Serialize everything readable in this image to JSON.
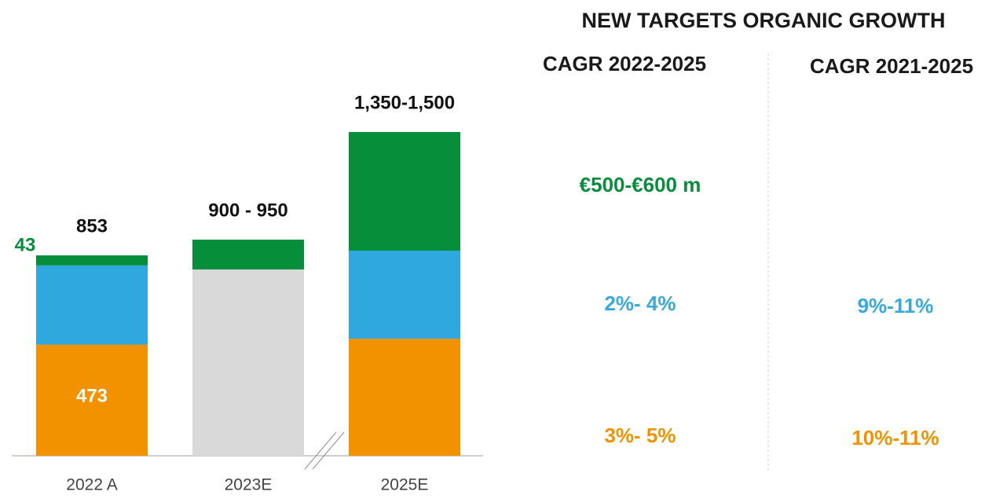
{
  "chart_data": {
    "type": "stacked_bar",
    "categories": [
      "2022 A",
      "2023E",
      "2025E"
    ],
    "series": [
      {
        "color": "#f29200",
        "values": [
          473,
          null,
          498
        ],
        "value_labels": [
          "473",
          null,
          null
        ]
      },
      {
        "color": "#d9d9d9",
        "values": [
          null,
          793,
          null
        ]
      },
      {
        "color": "#2fa8e0",
        "values": [
          337,
          null,
          375
        ]
      },
      {
        "color": "#068e3a",
        "values": [
          43,
          127,
          505
        ],
        "value_labels": [
          "43",
          null,
          null
        ]
      }
    ],
    "total_labels": [
      "853",
      "900 - 950",
      "1,350-1,500"
    ]
  },
  "targets": {
    "title": "NEW TARGETS ORGANIC GROWTH",
    "columns": [
      "CAGR 2022-2025",
      "CAGR 2021-2025"
    ],
    "rows": [
      {
        "color": "#068e3a",
        "cells": [
          "€500-€600 m",
          null
        ]
      },
      {
        "color": "#36a9e1",
        "cells": [
          "2%- 4%",
          "9%-11%"
        ]
      },
      {
        "color": "#f39200",
        "cells": [
          "3%- 5%",
          "10%-11%"
        ]
      }
    ]
  }
}
